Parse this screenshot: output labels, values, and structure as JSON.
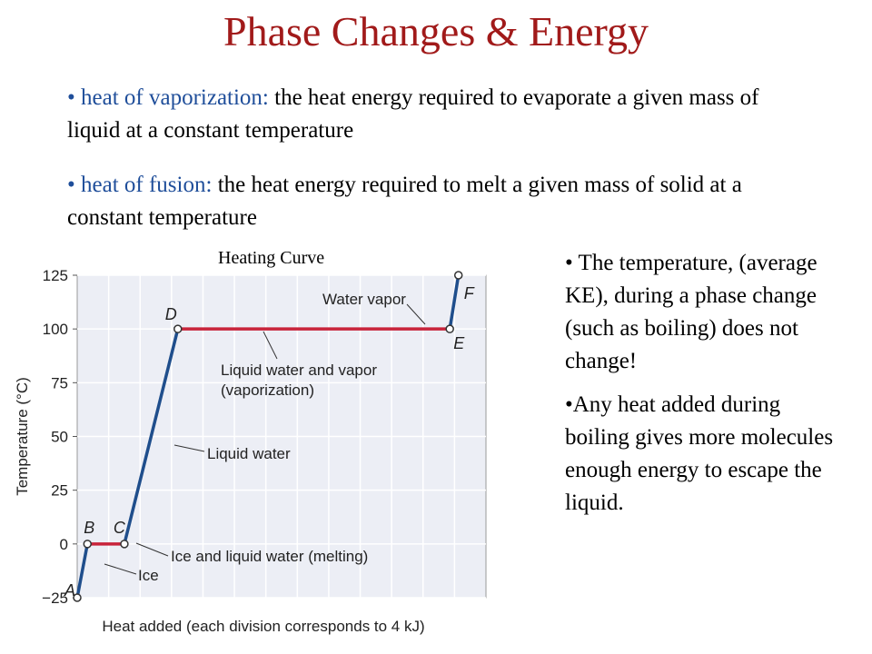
{
  "slide": {
    "title": "Phase Changes & Energy",
    "bullet1": {
      "marker": "•",
      "term": "heat of vaporization:",
      "text": " the heat energy required to evaporate a given mass of liquid at a constant temperature"
    },
    "bullet2": {
      "marker": "•",
      "term": "heat of fusion:",
      "text": " the heat energy required to melt a given mass of solid at a constant temperature"
    },
    "right_bullet1": "• The temperature, (average KE), during a phase change (such as boiling) does not change!",
    "right_bullet2": "•Any heat added during boiling gives more molecules enough energy to escape the liquid."
  },
  "chart_data": {
    "type": "line",
    "title": "Heating Curve",
    "xlabel": "Heat added (each division corresponds to 4 kJ)",
    "ylabel": "Temperature (°C)",
    "xlim": [
      0,
      52
    ],
    "ylim": [
      -25,
      125
    ],
    "yticks": [
      -25,
      0,
      25,
      50,
      75,
      100,
      125
    ],
    "yticklabels": [
      "−25",
      "0",
      "25",
      "50",
      "75",
      "100",
      "125"
    ],
    "xdivisions": 13,
    "grid": true,
    "colors": {
      "heating": "#1f4e8c",
      "phase": "#c8233a",
      "frame_bg": "#eceef5"
    },
    "points": [
      {
        "label": "A",
        "x": 0.0,
        "y": -25
      },
      {
        "label": "B",
        "x": 1.3,
        "y": 0
      },
      {
        "label": "C",
        "x": 6.0,
        "y": 0
      },
      {
        "label": "D",
        "x": 12.8,
        "y": 100
      },
      {
        "label": "E",
        "x": 47.4,
        "y": 100
      },
      {
        "label": "F",
        "x": 48.5,
        "y": 125
      }
    ],
    "segments": [
      {
        "from": "A",
        "to": "B",
        "phase": false
      },
      {
        "from": "B",
        "to": "C",
        "phase": true
      },
      {
        "from": "C",
        "to": "D",
        "phase": false
      },
      {
        "from": "D",
        "to": "E",
        "phase": true
      },
      {
        "from": "E",
        "to": "F",
        "phase": false
      }
    ],
    "annotations": [
      {
        "text": "Water vapor",
        "segment": 4
      },
      {
        "text": "Liquid water and vapor",
        "segment": 3
      },
      {
        "text": "(vaporization)",
        "segment": 3
      },
      {
        "text": "Liquid water",
        "segment": 2
      },
      {
        "text": "Ice and liquid water (melting)",
        "segment": 1
      },
      {
        "text": "Ice",
        "segment": 0
      }
    ]
  }
}
